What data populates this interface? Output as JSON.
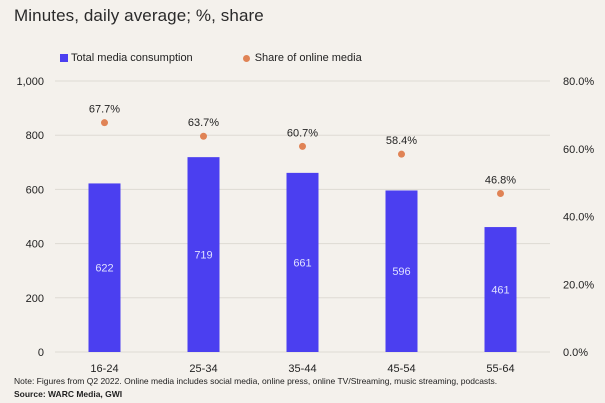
{
  "title": "Minutes, daily average; %,  share",
  "legend": {
    "total_label": "Total media consumption",
    "share_label": "Share of online media"
  },
  "colors": {
    "bar": "#4b3ff0",
    "dot": "#e08355",
    "background": "#f4f1ec",
    "gridline": "#dedad3"
  },
  "note": "Note: Figures from Q2 2022. Online media includes social media, online press, online TV/Streaming, music streaming, podcasts.",
  "source": "Source: WARC Media, GWI",
  "chart_data": {
    "type": "bar",
    "categories": [
      "16-24",
      "25-34",
      "35-44",
      "45-54",
      "55-64"
    ],
    "series": [
      {
        "name": "Total media consumption",
        "type": "bar",
        "axis": "left",
        "values": [
          622,
          719,
          661,
          596,
          461
        ],
        "labels": [
          "622",
          "719",
          "661",
          "596",
          "461"
        ]
      },
      {
        "name": "Share of online media",
        "type": "scatter",
        "axis": "right",
        "values": [
          67.7,
          63.7,
          60.7,
          58.4,
          46.8
        ],
        "labels": [
          "67.7%",
          "63.7%",
          "60.7%",
          "58.4%",
          "46.8%"
        ]
      }
    ],
    "y_left": {
      "lim": [
        0,
        1000
      ],
      "ticks": [
        0,
        200,
        400,
        600,
        800,
        1000
      ],
      "tick_labels": [
        "0",
        "200",
        "400",
        "600",
        "800",
        "1,000"
      ]
    },
    "y_right": {
      "lim": [
        0,
        80
      ],
      "ticks": [
        0,
        20,
        40,
        60,
        80
      ],
      "tick_labels": [
        "0.0%",
        "20.0%",
        "40.0%",
        "60.0%",
        "80.0%"
      ]
    },
    "grid": true,
    "legend_position": "top-left"
  }
}
